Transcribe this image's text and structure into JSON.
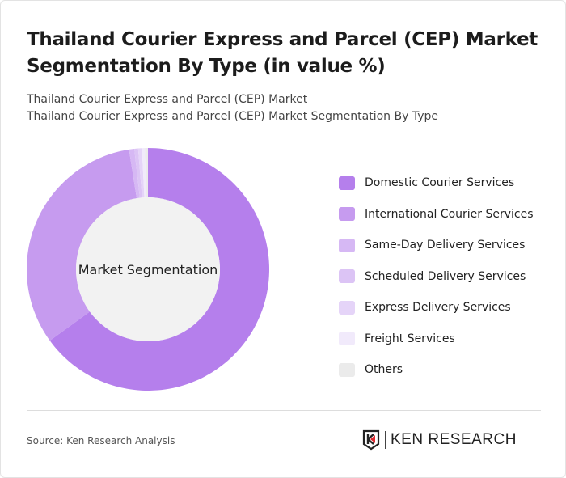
{
  "title": "Thailand Courier Express and Parcel (CEP) Market Segmentation By Type (in value %)",
  "subtitle1": "Thailand Courier Express and Parcel (CEP) Market",
  "subtitle2": "Thailand Courier Express and Parcel (CEP) Market Segmentation By Type",
  "source": "Source: Ken Research Analysis",
  "logo_text": "KEN RESEARCH",
  "chart_data": {
    "type": "pie",
    "donut": true,
    "center_label": "Market Segmentation",
    "legend_placement": "right",
    "categories": [
      "Domestic Courier Services",
      "International Courier Services",
      "Same-Day Delivery Services",
      "Scheduled Delivery Services",
      "Express Delivery Services",
      "Freight Services",
      "Others"
    ],
    "values": [
      65,
      32.5,
      0.7,
      0.5,
      0.5,
      0.4,
      0.4
    ],
    "colors": [
      "#b57fec",
      "#c69bef",
      "#d6b8f4",
      "#dcc4f5",
      "#e5d4f8",
      "#f1eafb",
      "#ebebeb"
    ]
  }
}
